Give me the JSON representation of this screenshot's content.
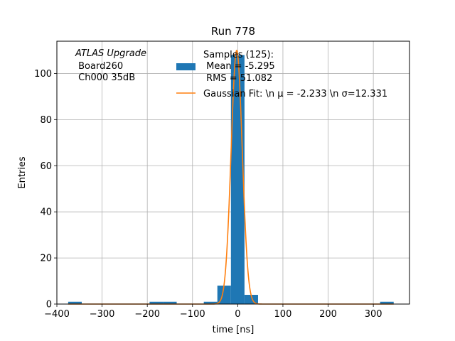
{
  "chart_data": {
    "type": "bar",
    "title": "Run 778",
    "xlabel": "time [ns]",
    "ylabel": "Entries",
    "xlim": [
      -400,
      380
    ],
    "ylim": [
      0,
      114
    ],
    "xticks": [
      -400,
      -300,
      -200,
      -100,
      0,
      100,
      200,
      300
    ],
    "xtick_labels": [
      "−400",
      "−300",
      "−200",
      "−100",
      "0",
      "100",
      "200",
      "300"
    ],
    "yticks": [
      0,
      20,
      40,
      60,
      80,
      100
    ],
    "ytick_labels": [
      "0",
      "20",
      "40",
      "60",
      "80",
      "100"
    ],
    "grid": true,
    "annotation_lines": [
      "ATLAS Upgrade",
      " Board260",
      " Ch000 35dB"
    ],
    "histogram": {
      "name_lines": [
        "Samples (125):",
        " Mean = -5.295",
        " RMS = 51.082"
      ],
      "color": "#1f77b4",
      "bins": [
        {
          "x0": -375,
          "x1": -345,
          "value": 1
        },
        {
          "x0": -195,
          "x1": -165,
          "value": 1
        },
        {
          "x0": -165,
          "x1": -135,
          "value": 1
        },
        {
          "x0": -75,
          "x1": -45,
          "value": 1
        },
        {
          "x0": -45,
          "x1": -15,
          "value": 8
        },
        {
          "x0": -15,
          "x1": 15,
          "value": 108
        },
        {
          "x0": 15,
          "x1": 45,
          "value": 4
        },
        {
          "x0": 315,
          "x1": 345,
          "value": 1
        }
      ]
    },
    "fit": {
      "name": "Gaussian Fit: \\n μ = -2.233 \\n σ=12.331",
      "color": "#ff7f0e",
      "mu": -2.233,
      "sigma": 12.331,
      "amplitude": 110,
      "x_range": [
        -375,
        345
      ]
    },
    "legend_placement": "top-right"
  }
}
